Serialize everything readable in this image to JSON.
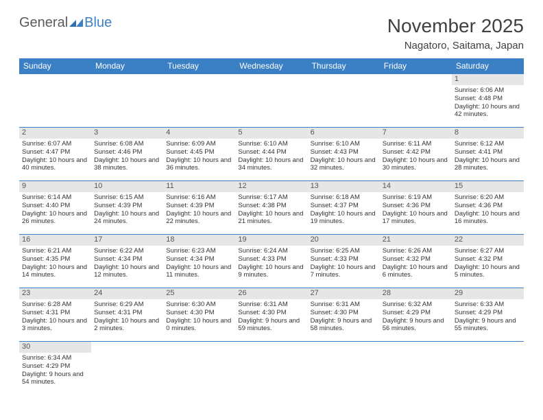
{
  "logo": {
    "part1": "General",
    "part2": "Blue"
  },
  "title": "November 2025",
  "location": "Nagatoro, Saitama, Japan",
  "colors": {
    "header_bg": "#3b7fc4",
    "header_text": "#ffffff",
    "daynum_bg": "#e6e6e6",
    "border": "#3b7fc4",
    "body_text": "#333333",
    "logo_gray": "#5a5a5a",
    "logo_blue": "#3b7fc4"
  },
  "weekdays": [
    "Sunday",
    "Monday",
    "Tuesday",
    "Wednesday",
    "Thursday",
    "Friday",
    "Saturday"
  ],
  "weeks": [
    [
      null,
      null,
      null,
      null,
      null,
      null,
      {
        "n": "1",
        "sr": "6:06 AM",
        "ss": "4:48 PM",
        "dl": "10 hours and 42 minutes."
      }
    ],
    [
      {
        "n": "2",
        "sr": "6:07 AM",
        "ss": "4:47 PM",
        "dl": "10 hours and 40 minutes."
      },
      {
        "n": "3",
        "sr": "6:08 AM",
        "ss": "4:46 PM",
        "dl": "10 hours and 38 minutes."
      },
      {
        "n": "4",
        "sr": "6:09 AM",
        "ss": "4:45 PM",
        "dl": "10 hours and 36 minutes."
      },
      {
        "n": "5",
        "sr": "6:10 AM",
        "ss": "4:44 PM",
        "dl": "10 hours and 34 minutes."
      },
      {
        "n": "6",
        "sr": "6:10 AM",
        "ss": "4:43 PM",
        "dl": "10 hours and 32 minutes."
      },
      {
        "n": "7",
        "sr": "6:11 AM",
        "ss": "4:42 PM",
        "dl": "10 hours and 30 minutes."
      },
      {
        "n": "8",
        "sr": "6:12 AM",
        "ss": "4:41 PM",
        "dl": "10 hours and 28 minutes."
      }
    ],
    [
      {
        "n": "9",
        "sr": "6:14 AM",
        "ss": "4:40 PM",
        "dl": "10 hours and 26 minutes."
      },
      {
        "n": "10",
        "sr": "6:15 AM",
        "ss": "4:39 PM",
        "dl": "10 hours and 24 minutes."
      },
      {
        "n": "11",
        "sr": "6:16 AM",
        "ss": "4:39 PM",
        "dl": "10 hours and 22 minutes."
      },
      {
        "n": "12",
        "sr": "6:17 AM",
        "ss": "4:38 PM",
        "dl": "10 hours and 21 minutes."
      },
      {
        "n": "13",
        "sr": "6:18 AM",
        "ss": "4:37 PM",
        "dl": "10 hours and 19 minutes."
      },
      {
        "n": "14",
        "sr": "6:19 AM",
        "ss": "4:36 PM",
        "dl": "10 hours and 17 minutes."
      },
      {
        "n": "15",
        "sr": "6:20 AM",
        "ss": "4:36 PM",
        "dl": "10 hours and 16 minutes."
      }
    ],
    [
      {
        "n": "16",
        "sr": "6:21 AM",
        "ss": "4:35 PM",
        "dl": "10 hours and 14 minutes."
      },
      {
        "n": "17",
        "sr": "6:22 AM",
        "ss": "4:34 PM",
        "dl": "10 hours and 12 minutes."
      },
      {
        "n": "18",
        "sr": "6:23 AM",
        "ss": "4:34 PM",
        "dl": "10 hours and 11 minutes."
      },
      {
        "n": "19",
        "sr": "6:24 AM",
        "ss": "4:33 PM",
        "dl": "10 hours and 9 minutes."
      },
      {
        "n": "20",
        "sr": "6:25 AM",
        "ss": "4:33 PM",
        "dl": "10 hours and 7 minutes."
      },
      {
        "n": "21",
        "sr": "6:26 AM",
        "ss": "4:32 PM",
        "dl": "10 hours and 6 minutes."
      },
      {
        "n": "22",
        "sr": "6:27 AM",
        "ss": "4:32 PM",
        "dl": "10 hours and 5 minutes."
      }
    ],
    [
      {
        "n": "23",
        "sr": "6:28 AM",
        "ss": "4:31 PM",
        "dl": "10 hours and 3 minutes."
      },
      {
        "n": "24",
        "sr": "6:29 AM",
        "ss": "4:31 PM",
        "dl": "10 hours and 2 minutes."
      },
      {
        "n": "25",
        "sr": "6:30 AM",
        "ss": "4:30 PM",
        "dl": "10 hours and 0 minutes."
      },
      {
        "n": "26",
        "sr": "6:31 AM",
        "ss": "4:30 PM",
        "dl": "9 hours and 59 minutes."
      },
      {
        "n": "27",
        "sr": "6:31 AM",
        "ss": "4:30 PM",
        "dl": "9 hours and 58 minutes."
      },
      {
        "n": "28",
        "sr": "6:32 AM",
        "ss": "4:29 PM",
        "dl": "9 hours and 56 minutes."
      },
      {
        "n": "29",
        "sr": "6:33 AM",
        "ss": "4:29 PM",
        "dl": "9 hours and 55 minutes."
      }
    ],
    [
      {
        "n": "30",
        "sr": "6:34 AM",
        "ss": "4:29 PM",
        "dl": "9 hours and 54 minutes."
      },
      null,
      null,
      null,
      null,
      null,
      null
    ]
  ],
  "labels": {
    "sunrise": "Sunrise:",
    "sunset": "Sunset:",
    "daylight": "Daylight:"
  }
}
